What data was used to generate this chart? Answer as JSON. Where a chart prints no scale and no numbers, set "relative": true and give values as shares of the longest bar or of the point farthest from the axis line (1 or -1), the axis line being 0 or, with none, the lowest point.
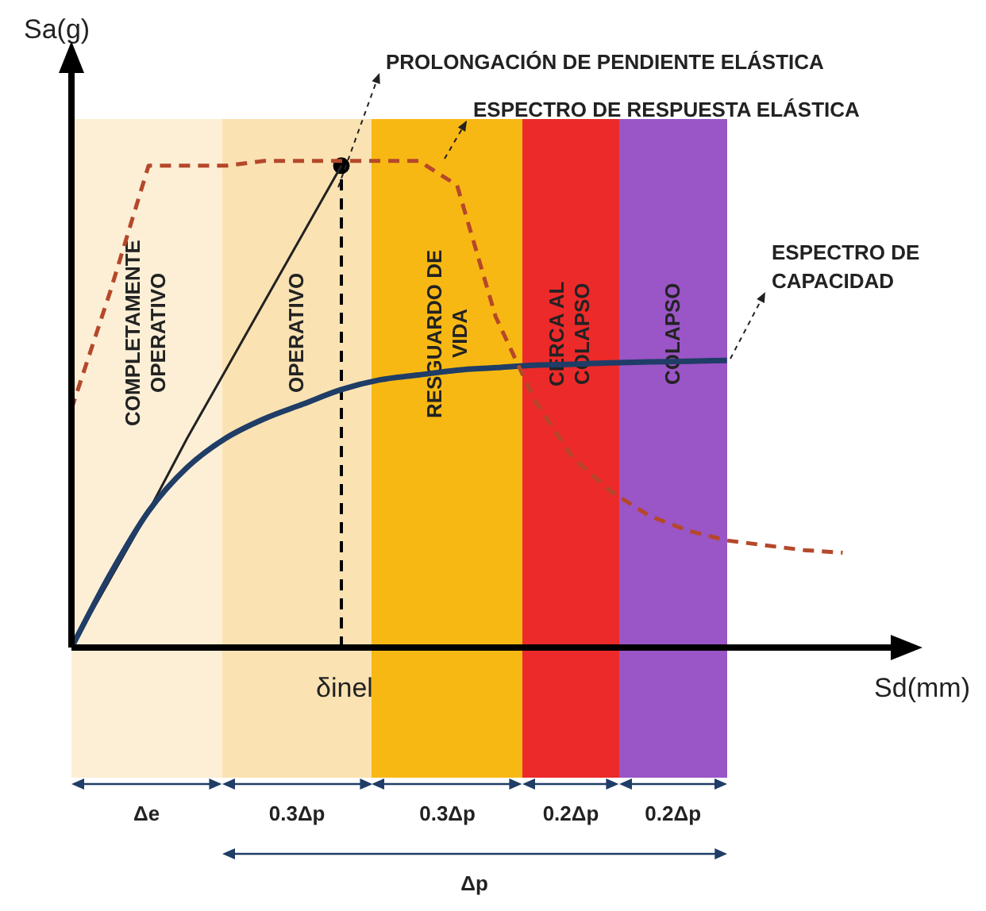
{
  "chart_data": {
    "type": "line",
    "relative": true,
    "xlabel": "Sd(mm)",
    "ylabel": "Sa(g)",
    "categories": [
      null,
      null,
      null,
      null,
      null,
      null,
      null,
      null,
      null,
      null,
      null,
      null,
      null,
      null,
      null,
      null,
      null,
      null,
      null,
      null,
      null,
      null
    ],
    "series": [
      {
        "name": "ESPECTRO DE RESPUESTA ELÁSTICA",
        "color": "#b5482a",
        "line_style": "dashed",
        "marker": "none",
        "values": [
          0.49,
          0.73,
          0.99,
          0.99,
          0.99,
          1.0,
          1.0,
          1.0,
          1.0,
          1.0,
          0.95,
          0.68,
          0.51,
          0.39,
          0.32,
          0.27,
          0.24,
          0.22,
          0.21,
          0.2,
          0.195,
          null
        ]
      },
      {
        "name": "ESPECTRO DE CAPACIDAD",
        "color": "#1f3d66",
        "line_style": "solid",
        "marker": "none",
        "values": [
          0,
          0.15,
          0.28,
          0.37,
          0.43,
          0.47,
          0.5,
          0.53,
          0.55,
          0.56,
          0.57,
          0.575,
          0.58,
          0.582,
          0.585,
          0.587,
          0.588,
          0.59,
          null,
          null,
          null,
          null
        ]
      },
      {
        "name": "PROLONGACIÓN DE PENDIENTE ELÁSTICA",
        "color": "#222222",
        "line_style": "solid",
        "marker": "none",
        "values": [
          0,
          0.14,
          0.28,
          0.43,
          0.57,
          0.71,
          0.85,
          0.99,
          null,
          null,
          null,
          null,
          null,
          null,
          null,
          null,
          null,
          null,
          null,
          null,
          null,
          null
        ]
      },
      {
        "color": "#000000",
        "marker": "circle",
        "values": [
          null,
          null,
          null,
          null,
          null,
          null,
          null,
          0.99,
          null,
          null,
          null,
          null,
          null,
          null,
          null,
          null,
          null,
          null,
          null,
          null,
          null,
          null
        ]
      }
    ],
    "annotations": [
      "COMPLETAMENTE OPERATIVO",
      "OPERATIVO",
      "RESGUARDO DE VIDA",
      "CERCA AL COLAPSO",
      "COLAPSO",
      "δinel",
      "Δe",
      "0.3Δp",
      "0.3Δp",
      "0.2Δp",
      "0.2Δp",
      "Δp"
    ]
  }
}
